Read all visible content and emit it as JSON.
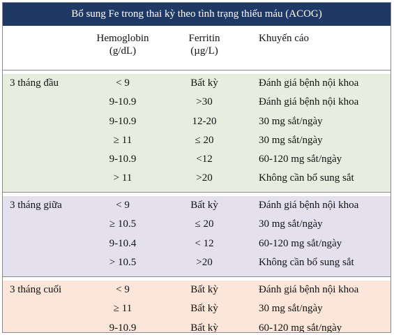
{
  "title": "Bổ sung Fe trong thai kỳ theo tình trạng thiếu máu (ACOG)",
  "headers": {
    "hemoglobin": [
      "Hemoglobin",
      "(g/dL)"
    ],
    "ferritin": [
      "Ferritin",
      "(µg/L)"
    ],
    "recommendation": "Khuyến cáo"
  },
  "colors": {
    "title_bg": "#1f3864",
    "trimester_1_bg": "#e8eedf",
    "trimester_2_bg": "#e4e0ee",
    "trimester_3_bg": "#fbe6d9"
  },
  "sections": [
    {
      "trimester": "3 tháng đầu",
      "rows": [
        {
          "hb": "< 9",
          "fe": "Bất kỳ",
          "rec": "Đánh giá bệnh nội khoa"
        },
        {
          "hb": "9-10.9",
          "fe": ">30",
          "rec": "Đánh giá bệnh nội khoa"
        },
        {
          "hb": "9-10.9",
          "fe": "12-20",
          "rec": "30 mg sắt/ngày"
        },
        {
          "hb": "≥ 11",
          "fe": "≤ 20",
          "rec": "30 mg sắt/ngày"
        },
        {
          "hb": "9-10.9",
          "fe": "<12",
          "rec": "60-120 mg sắt/ngày"
        },
        {
          "hb": "> 11",
          "fe": ">20",
          "rec": "Không cần bổ sung sắt"
        }
      ]
    },
    {
      "trimester": "3 tháng giữa",
      "rows": [
        {
          "hb": "< 9",
          "fe": "Bất kỳ",
          "rec": "Đánh giá bệnh nội khoa"
        },
        {
          "hb": "≥ 10.5",
          "fe": "≤ 20",
          "rec": "30 mg sắt/ngày"
        },
        {
          "hb": "9-10.4",
          "fe": "< 12",
          "rec": "60-120 mg sắt/ngày"
        },
        {
          "hb": "> 10.5",
          "fe": ">20",
          "rec": "Không cần bổ sung sắt"
        }
      ]
    },
    {
      "trimester": "3 tháng cuối",
      "rows": [
        {
          "hb": "< 9",
          "fe": "Bất kỳ",
          "rec": "Đánh giá bệnh nội khoa"
        },
        {
          "hb": "≥ 11",
          "fe": "Bất kỳ",
          "rec": "30 mg sắt/ngày"
        },
        {
          "hb": "9-10.9",
          "fe": "Bất kỳ",
          "rec": "60-120 mg sắt/ngày"
        }
      ]
    }
  ]
}
